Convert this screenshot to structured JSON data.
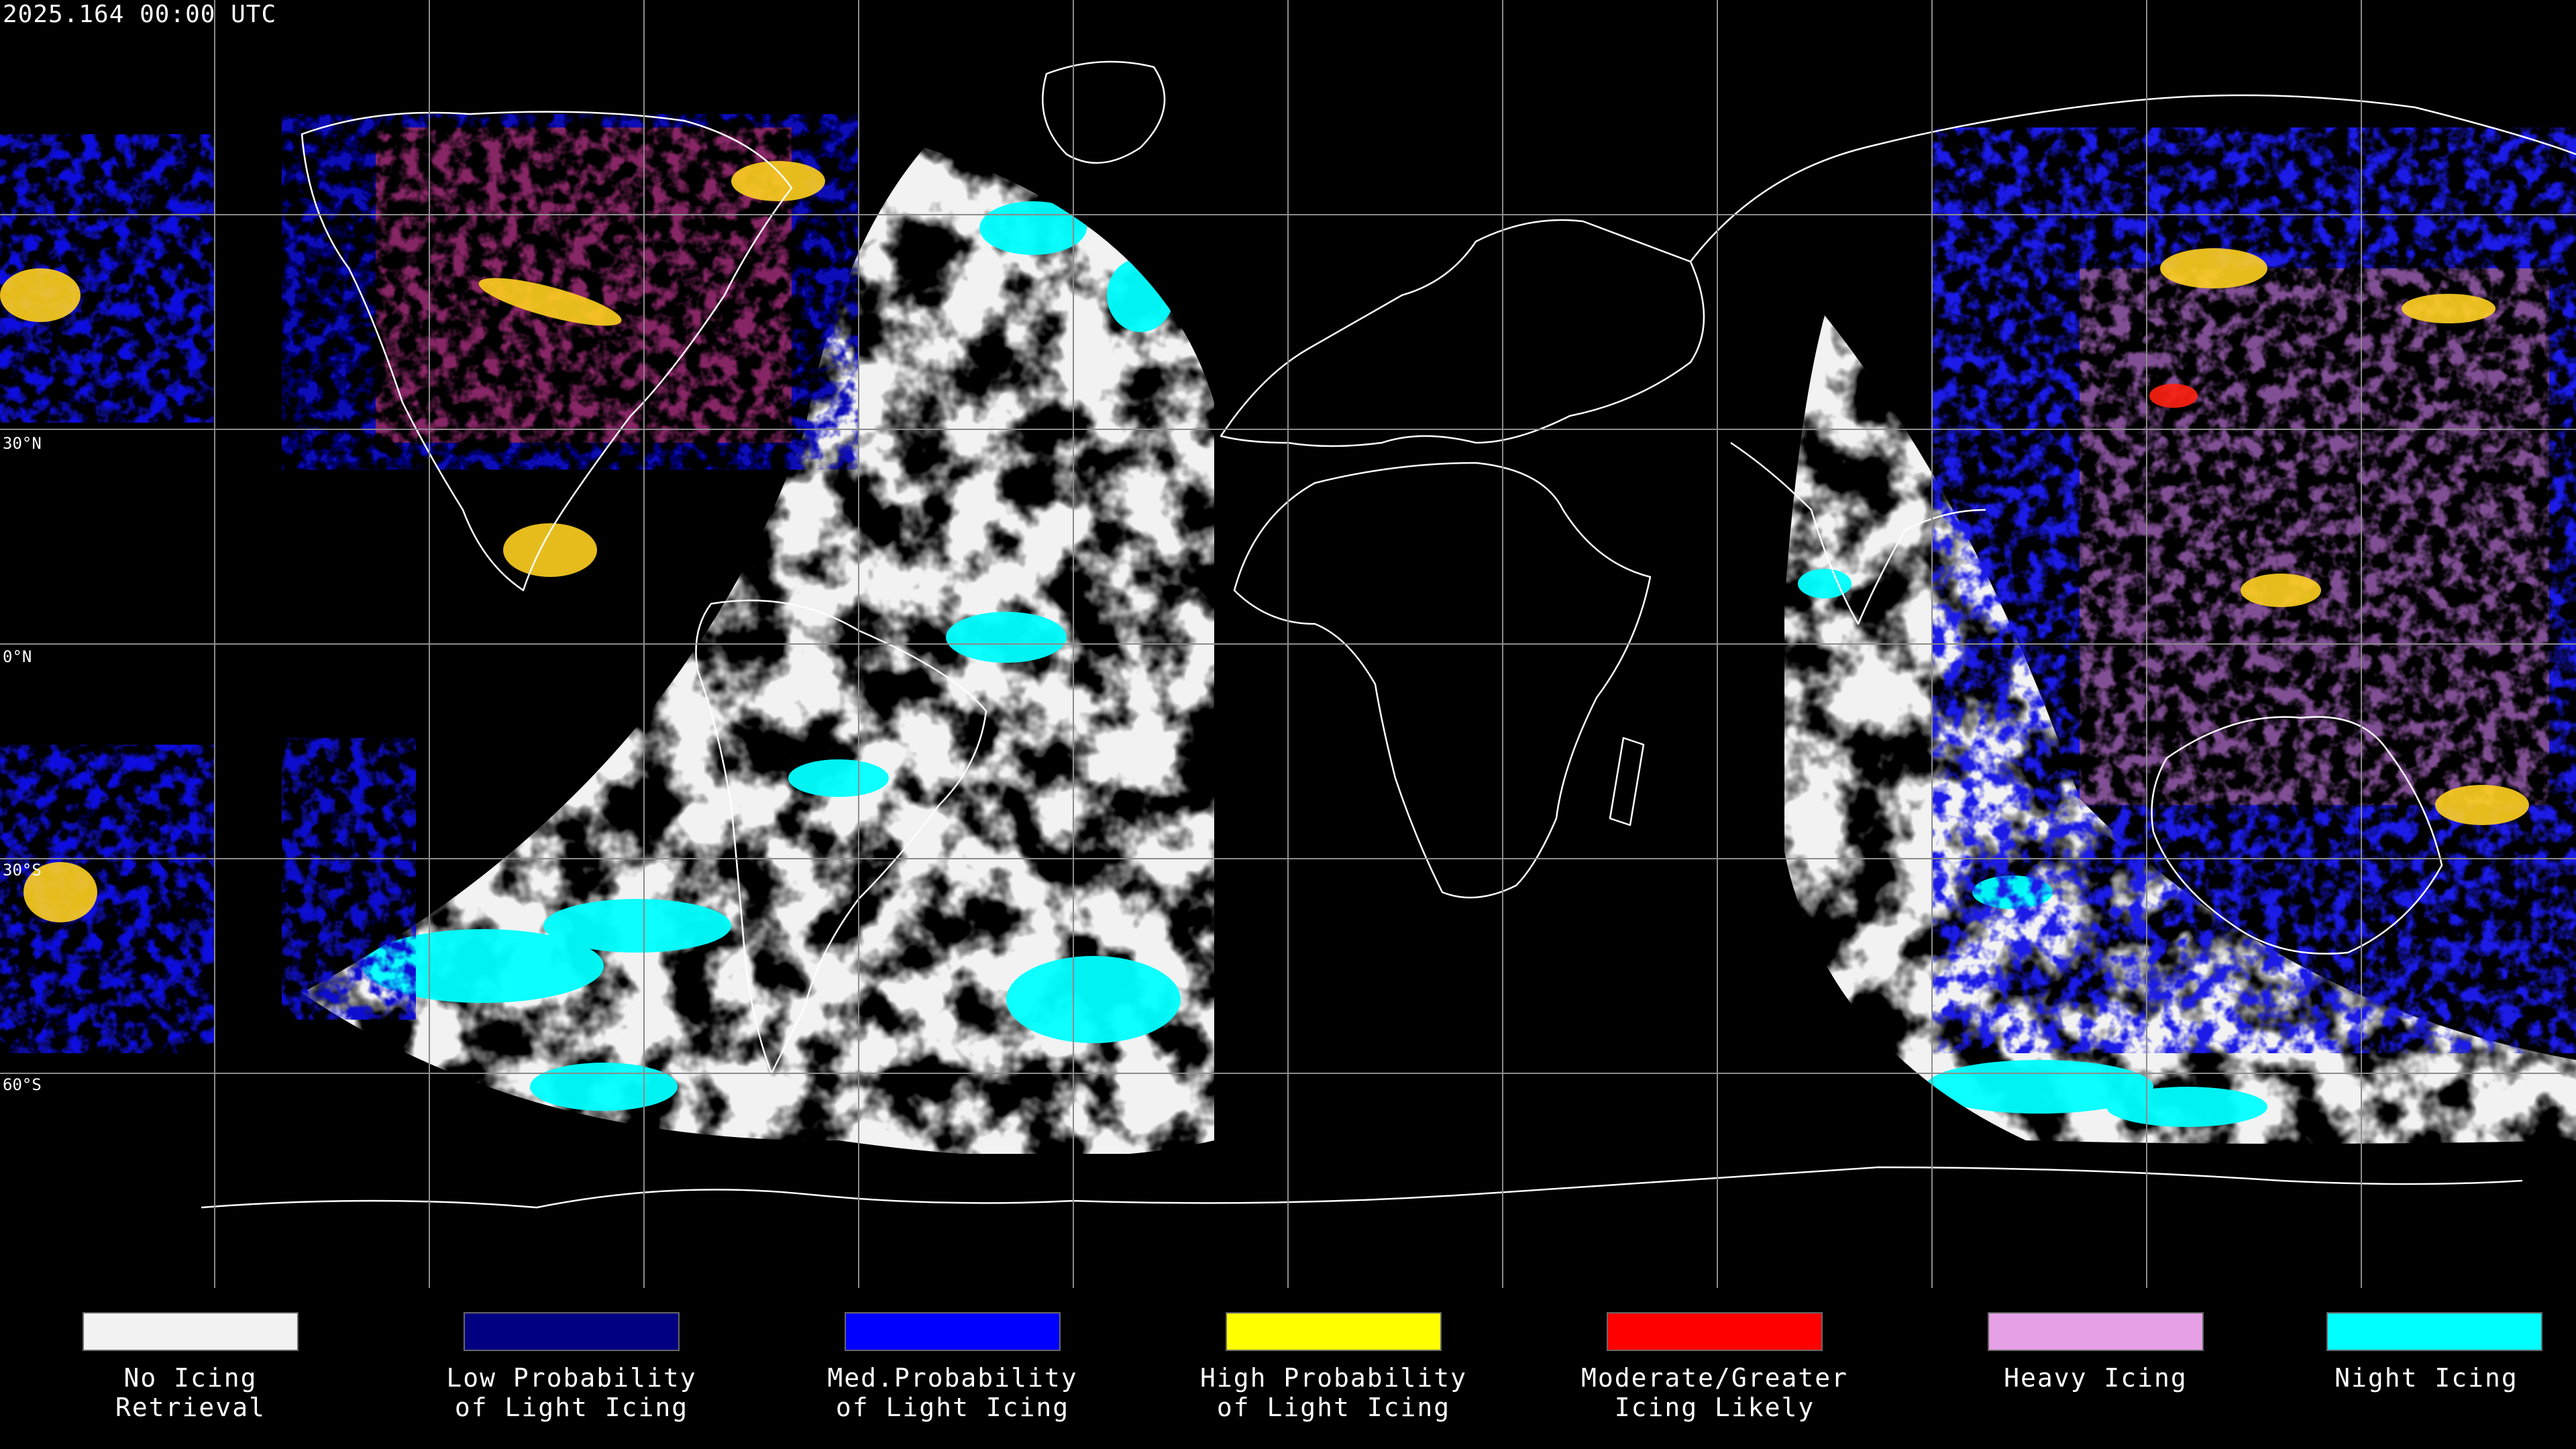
{
  "map": {
    "timestamp": "2025.164 00:00 UTC",
    "latitude_labels": [
      "30°N",
      "0°N",
      "30°S",
      "60°S"
    ],
    "background_color": "#000000",
    "grid_color": "#8c8c8c",
    "coastline_color": "#ffffff",
    "scene": "global equirectangular icing product map with lat/lon grid and coastlines; white/cyan retrieval discs over the Atlantic-Americas and the Indian Ocean-Asia sectors; blue/red/yellow icing probability speckle over the Pacific region"
  },
  "legend": {
    "items": [
      {
        "line1": "No Icing",
        "line2": "Retrieval",
        "color": "#f2f2f2"
      },
      {
        "line1": "Low Probability",
        "line2": "of Light Icing",
        "color": "#000080"
      },
      {
        "line1": "Med.Probability",
        "line2": "of Light Icing",
        "color": "#0000ff"
      },
      {
        "line1": "High Probability",
        "line2": "of Light Icing",
        "color": "#ffff00"
      },
      {
        "line1": "Moderate/Greater",
        "line2": "Icing Likely",
        "color": "#ff0000"
      },
      {
        "line1": "Heavy Icing",
        "line2": "",
        "color": "#e6a0e6"
      },
      {
        "line1": "Night Icing",
        "line2": "",
        "color": "#00ffff"
      }
    ]
  }
}
